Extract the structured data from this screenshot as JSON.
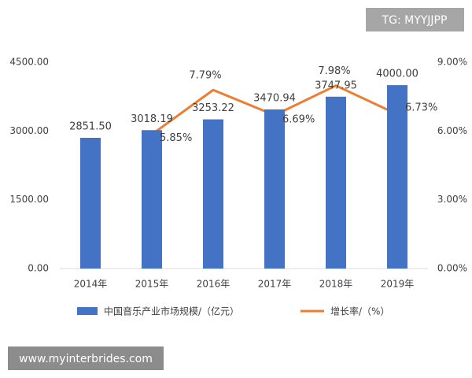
{
  "chart_data": {
    "type": "bar_line",
    "categories": [
      "2014年",
      "2015年",
      "2016年",
      "2017年",
      "2018年",
      "2019年"
    ],
    "series": [
      {
        "name": "中国音乐产业市场规模/（亿元）",
        "color": "#4472c4",
        "type": "bar",
        "values": [
          2851.5,
          3018.19,
          3253.22,
          3470.94,
          3747.95,
          4000
        ],
        "value_labels": [
          "2851.50",
          "3018.19",
          "3253.22",
          "3470.94",
          "3747.95",
          "4000.00"
        ]
      },
      {
        "name": "增长率/（%）",
        "color": "#ed7d31",
        "type": "line",
        "axis": "y2",
        "values": [
          null,
          5.85,
          7.79,
          6.69,
          7.98,
          6.73
        ],
        "value_labels": [
          null,
          "5.85%",
          "7.79%",
          "6.69%",
          "7.98%",
          "6.73%"
        ]
      }
    ],
    "ylim": [
      0,
      4500
    ],
    "yticks": [
      {
        "value": 0,
        "label": "0.00"
      },
      {
        "value": 1500,
        "label": "1500.00"
      },
      {
        "value": 3000,
        "label": "3000.00"
      },
      {
        "value": 4500,
        "label": "4500.00"
      }
    ],
    "y2lim": [
      0,
      9
    ],
    "y2ticks": [
      {
        "value": 0,
        "label": "0.00%"
      },
      {
        "value": 3,
        "label": "3.00%"
      },
      {
        "value": 6,
        "label": "6.00%"
      },
      {
        "value": 9,
        "label": "9.00%"
      }
    ],
    "grid": false,
    "legend": "bottom"
  },
  "watermarks": [
    "TG: MYYJJPP",
    "www.myinterbrides.com"
  ]
}
